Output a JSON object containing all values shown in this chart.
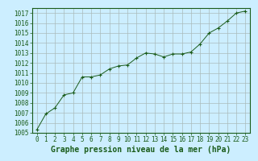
{
  "x": [
    0,
    1,
    2,
    3,
    4,
    5,
    6,
    7,
    8,
    9,
    10,
    11,
    12,
    13,
    14,
    15,
    16,
    17,
    18,
    19,
    20,
    21,
    22,
    23
  ],
  "y": [
    1005.3,
    1006.9,
    1007.5,
    1008.8,
    1009.0,
    1010.6,
    1010.6,
    1010.8,
    1011.4,
    1011.7,
    1011.8,
    1012.5,
    1013.0,
    1012.9,
    1012.6,
    1012.9,
    1012.9,
    1013.1,
    1013.9,
    1015.0,
    1015.5,
    1016.2,
    1017.0,
    1017.2
  ],
  "ylim": [
    1005,
    1017.5
  ],
  "yticks": [
    1005,
    1006,
    1007,
    1008,
    1009,
    1010,
    1011,
    1012,
    1013,
    1014,
    1015,
    1016,
    1017
  ],
  "xticks": [
    0,
    1,
    2,
    3,
    4,
    5,
    6,
    7,
    8,
    9,
    10,
    11,
    12,
    13,
    14,
    15,
    16,
    17,
    18,
    19,
    20,
    21,
    22,
    23
  ],
  "xlabel": "Graphe pression niveau de la mer (hPa)",
  "line_color": "#1a5c1a",
  "marker": "+",
  "marker_size": 3,
  "bg_color": "#cceeff",
  "grid_color": "#aabbbb",
  "tick_fontsize": 5.5,
  "xlabel_fontsize": 7,
  "text_color": "#1a5c1a"
}
